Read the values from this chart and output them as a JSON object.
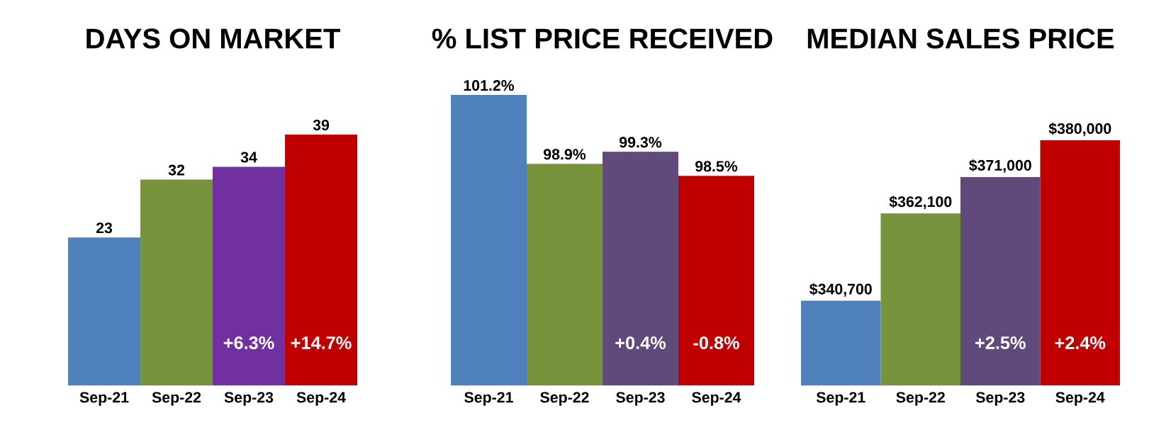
{
  "chart_data": [
    {
      "type": "bar",
      "title": "DAYS ON MARKET",
      "categories": [
        "Sep-21",
        "Sep-22",
        "Sep-23",
        "Sep-24"
      ],
      "values": [
        23,
        32,
        34,
        39
      ],
      "colors": [
        "#4f81bd",
        "#77933c",
        "#7030a0",
        "#c00000"
      ],
      "data_labels": true,
      "ylim": [
        0,
        39
      ],
      "tick_labels": "x",
      "annotations": [
        "+6.3%",
        "+14.7%"
      ]
    },
    {
      "type": "bar",
      "title": "% LIST PRICE RECEIVED",
      "categories": [
        "Sep-21",
        "Sep-22",
        "Sep-23",
        "Sep-24"
      ],
      "values": [
        101.2,
        98.9,
        99.3,
        98.5
      ],
      "colors": [
        "#4f81bd",
        "#77933c",
        "#604a7b",
        "#c00000"
      ],
      "value_labels": [
        "101.2%",
        "98.9%",
        "99.3%",
        "98.5%"
      ],
      "ylim": [
        91.5,
        101.2
      ],
      "tick_labels": "x",
      "annotations": [
        "+0.4%",
        "-0.8%"
      ]
    },
    {
      "type": "bar",
      "title": "MEDIAN SALES PRICE",
      "categories": [
        "Sep-21",
        "Sep-22",
        "Sep-23",
        "Sep-24"
      ],
      "values": [
        340700,
        362100,
        371000,
        380000
      ],
      "colors": [
        "#4f81bd",
        "#77933c",
        "#604a7b",
        "#c00000"
      ],
      "value_labels": [
        "$340,700",
        "$362,100",
        "$371,000",
        "$380,000"
      ],
      "ylim": [
        320000,
        380000
      ],
      "tick_labels": "x",
      "annotations": [
        "+2.5%",
        "+2.4%"
      ]
    }
  ]
}
